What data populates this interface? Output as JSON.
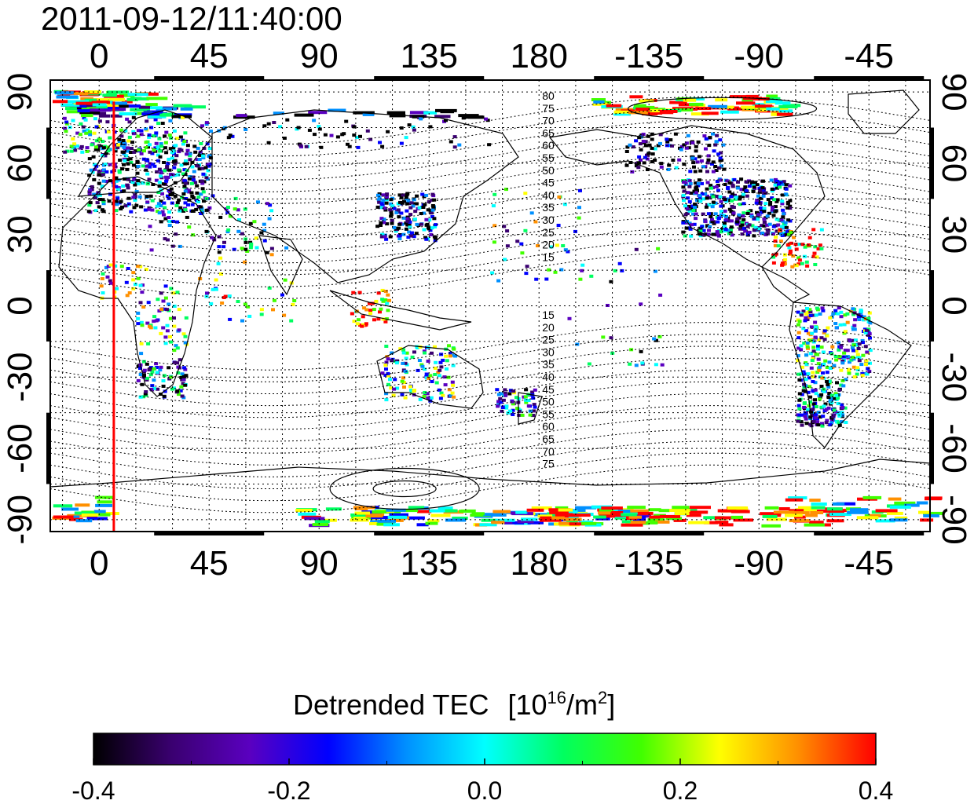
{
  "timestamp": "2011-09-12/11:40:00",
  "map": {
    "lon_ticks": [
      "0",
      "45",
      "90",
      "135",
      "180",
      "-135",
      "-90",
      "-45"
    ],
    "lat_ticks": [
      "90",
      "60",
      "30",
      "0",
      "-30",
      "-60",
      "-90"
    ],
    "lon_range": [
      -20,
      340
    ],
    "lat_range": [
      -95,
      95
    ],
    "meridian_marker_lon": 6,
    "marker_color": "#ff0000",
    "mlat_labels_north": [
      "80",
      "75",
      "70",
      "65",
      "60",
      "55",
      "50",
      "45",
      "40",
      "35",
      "30",
      "25",
      "20",
      "15"
    ],
    "mlat_labels_south": [
      "15",
      "20",
      "25",
      "30",
      "35",
      "40",
      "45",
      "50",
      "55",
      "60",
      "65",
      "70",
      "75"
    ]
  },
  "colorbar": {
    "title": "Detrended TEC",
    "units_prefix": "[10",
    "units_exp": "16",
    "units_mid": "/m",
    "units_exp2": "2",
    "units_suffix": "]",
    "min": -0.4,
    "max": 0.4,
    "tick_labels": [
      "-0.4",
      "-0.2",
      "0.0",
      "0.2",
      "0.4"
    ],
    "colormap": [
      "#000000",
      "#3a0070",
      "#5a00c0",
      "#0000ff",
      "#0090ff",
      "#00ffff",
      "#00ff60",
      "#40ff00",
      "#ffff00",
      "#ff9000",
      "#ff0000"
    ]
  }
}
